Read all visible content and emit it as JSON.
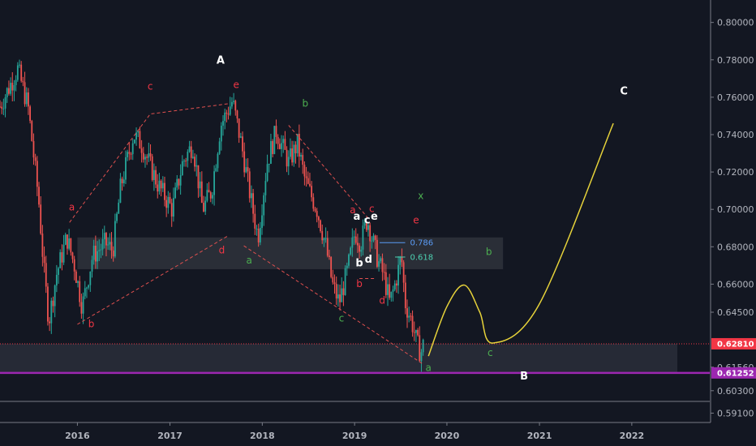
{
  "chart_data": {
    "type": "candlestick",
    "instrument_hint": "weekly price chart with Elliott wave annotations",
    "ylim": [
      0.586,
      0.812
    ],
    "y_scale": "linear",
    "grid": false,
    "y_ticks": [
      {
        "value": 0.8,
        "label": "0.80000"
      },
      {
        "value": 0.78,
        "label": "0.78000"
      },
      {
        "value": 0.76,
        "label": "0.76000"
      },
      {
        "value": 0.74,
        "label": "0.74000"
      },
      {
        "value": 0.72,
        "label": "0.72000"
      },
      {
        "value": 0.7,
        "label": "0.70000"
      },
      {
        "value": 0.68,
        "label": "0.68000"
      },
      {
        "value": 0.66,
        "label": "0.66000"
      },
      {
        "value": 0.645,
        "label": "0.64500"
      },
      {
        "value": 0.6156,
        "label": "0.61560"
      },
      {
        "value": 0.603,
        "label": "0.60300"
      },
      {
        "value": 0.591,
        "label": "0.59100"
      }
    ],
    "x_range": [
      "2015-03-01",
      "2022-06-30"
    ],
    "x_ticks": [
      {
        "date": "2016-01-01",
        "label": "2016"
      },
      {
        "date": "2017-01-01",
        "label": "2017"
      },
      {
        "date": "2018-01-01",
        "label": "2018"
      },
      {
        "date": "2019-01-01",
        "label": "2019"
      },
      {
        "date": "2020-01-01",
        "label": "2020"
      },
      {
        "date": "2021-01-01",
        "label": "2021"
      },
      {
        "date": "2022-01-01",
        "label": "2022"
      }
    ],
    "price_anchors": [
      [
        "2015-03-01",
        0.755
      ],
      [
        "2015-05-10",
        0.775
      ],
      [
        "2015-06-20",
        0.755
      ],
      [
        "2015-08-01",
        0.705
      ],
      [
        "2015-08-20",
        0.67
      ],
      [
        "2015-09-10",
        0.64
      ],
      [
        "2015-10-10",
        0.665
      ],
      [
        "2015-11-20",
        0.685
      ],
      [
        "2015-12-20",
        0.67
      ],
      [
        "2016-01-20",
        0.648
      ],
      [
        "2016-03-01",
        0.675
      ],
      [
        "2016-04-20",
        0.682
      ],
      [
        "2016-05-20",
        0.678
      ],
      [
        "2016-06-20",
        0.712
      ],
      [
        "2016-08-10",
        0.74
      ],
      [
        "2016-09-10",
        0.735
      ],
      [
        "2016-11-15",
        0.713
      ],
      [
        "2017-01-10",
        0.7
      ],
      [
        "2017-02-20",
        0.725
      ],
      [
        "2017-04-01",
        0.735
      ],
      [
        "2017-05-10",
        0.7
      ],
      [
        "2017-06-15",
        0.71
      ],
      [
        "2017-07-20",
        0.745
      ],
      [
        "2017-09-05",
        0.758
      ],
      [
        "2017-10-10",
        0.735
      ],
      [
        "2017-11-20",
        0.703
      ],
      [
        "2017-12-15",
        0.685
      ],
      [
        "2018-01-20",
        0.725
      ],
      [
        "2018-02-25",
        0.742
      ],
      [
        "2018-04-15",
        0.725
      ],
      [
        "2018-05-20",
        0.735
      ],
      [
        "2018-06-20",
        0.715
      ],
      [
        "2018-08-05",
        0.7
      ],
      [
        "2018-09-10",
        0.68
      ],
      [
        "2018-10-05",
        0.66
      ],
      [
        "2018-11-01",
        0.65
      ],
      [
        "2018-12-05",
        0.668
      ],
      [
        "2019-01-02",
        0.688
      ],
      [
        "2019-01-25",
        0.682
      ],
      [
        "2019-02-20",
        0.695
      ],
      [
        "2019-03-10",
        0.685
      ],
      [
        "2019-04-05",
        0.672
      ],
      [
        "2019-04-25",
        0.665
      ],
      [
        "2019-05-20",
        0.65
      ],
      [
        "2019-06-10",
        0.66
      ],
      [
        "2019-07-05",
        0.675
      ],
      [
        "2019-07-20",
        0.65
      ],
      [
        "2019-08-15",
        0.64
      ],
      [
        "2019-09-05",
        0.628
      ],
      [
        "2019-09-20",
        0.623
      ],
      [
        "2019-10-05",
        0.63
      ]
    ],
    "zones": [
      {
        "name": "resistance-zone",
        "from": "2016-01-01",
        "to": "2020-08-10",
        "y_low": 0.668,
        "y_high": 0.685,
        "color": "#2f323b"
      },
      {
        "name": "support-zone",
        "from": "2015-03-01",
        "to": "2022-06-30",
        "y_low": 0.6125,
        "y_high": 0.6281,
        "color": "#2a2e39"
      }
    ],
    "horizontal_lines": [
      {
        "name": "current-price-line",
        "value": 0.6281,
        "style": "dotted",
        "color": "#f23645"
      },
      {
        "name": "support-line",
        "value": 0.61252,
        "style": "solid",
        "color": "#9c27b0"
      }
    ],
    "price_badges": [
      {
        "name": "current-price-badge",
        "value": 0.6281,
        "text": "0.62810",
        "color": "#f23645"
      },
      {
        "name": "support-badge",
        "value": 0.61252,
        "text": "0.61252",
        "color": "#9c27b0"
      }
    ],
    "fib_levels": [
      {
        "ratio": "0.786",
        "value": 0.6822,
        "color": "#5b9cf6",
        "from": "2019-04-10",
        "to": "2019-07-20"
      },
      {
        "ratio": "0.618",
        "value": 0.6745,
        "color": "#4dd0b1",
        "from": "2019-06-10",
        "to": "2019-07-20"
      }
    ],
    "triangle_upper": [
      [
        "2015-12-01",
        0.693
      ],
      [
        "2016-10-15",
        0.751
      ],
      [
        "2017-08-20",
        0.7565
      ]
    ],
    "triangle_lower": [
      [
        "2016-01-01",
        0.6385
      ],
      [
        "2017-08-20",
        0.686
      ]
    ],
    "channel_upper": [
      [
        "2018-04-15",
        0.745
      ],
      [
        "2019-03-01",
        0.6945
      ]
    ],
    "channel_lower": [
      [
        "2017-10-20",
        0.6805
      ],
      [
        "2019-10-01",
        0.617
      ]
    ],
    "small_box": [
      [
        "2019-01-20",
        0.663
      ],
      [
        "2019-03-20",
        0.663
      ]
    ],
    "projection": [
      [
        "2019-10-20",
        0.6215
      ],
      [
        "2020-01-01",
        0.648
      ],
      [
        "2020-03-10",
        0.6595
      ],
      [
        "2020-05-10",
        0.645
      ],
      [
        "2020-07-01",
        0.6285
      ],
      [
        "2021-01-01",
        0.6495
      ],
      [
        "2021-10-20",
        0.746
      ]
    ],
    "wave_labels": [
      {
        "text": "A",
        "date": "2017-07-20",
        "value": 0.778,
        "color": "#ffffff",
        "bold": true
      },
      {
        "text": "a",
        "date": "2015-12-10",
        "value": 0.6995,
        "color": "#f23645"
      },
      {
        "text": "b",
        "date": "2016-02-25",
        "value": 0.637,
        "color": "#f23645"
      },
      {
        "text": "c",
        "date": "2016-10-15",
        "value": 0.764,
        "color": "#f23645"
      },
      {
        "text": "d",
        "date": "2017-07-25",
        "value": 0.6765,
        "color": "#f23645"
      },
      {
        "text": "e",
        "date": "2017-09-20",
        "value": 0.765,
        "color": "#f23645"
      },
      {
        "text": "b",
        "date": "2018-06-20",
        "value": 0.755,
        "color": "#4caf50"
      },
      {
        "text": "a",
        "date": "2017-11-10",
        "value": 0.671,
        "color": "#4caf50"
      },
      {
        "text": "c",
        "date": "2018-11-10",
        "value": 0.64,
        "color": "#4caf50"
      },
      {
        "text": "x",
        "date": "2019-09-20",
        "value": 0.7055,
        "color": "#4caf50"
      },
      {
        "text": "a",
        "date": "2018-12-25",
        "value": 0.698,
        "color": "#f23645"
      },
      {
        "text": "b",
        "date": "2019-01-20",
        "value": 0.6585,
        "color": "#f23645"
      },
      {
        "text": "c",
        "date": "2019-03-10",
        "value": 0.6985,
        "color": "#f23645"
      },
      {
        "text": "d",
        "date": "2019-04-20",
        "value": 0.6495,
        "color": "#f23645"
      },
      {
        "text": "e",
        "date": "2019-09-01",
        "value": 0.6925,
        "color": "#f23645"
      },
      {
        "text": "a",
        "date": "2019-01-10",
        "value": 0.6945,
        "color": "#ffffff",
        "bold": true
      },
      {
        "text": "c",
        "date": "2019-02-20",
        "value": 0.6925,
        "color": "#ffffff",
        "bold": true
      },
      {
        "text": "e",
        "date": "2019-03-20",
        "value": 0.6945,
        "color": "#ffffff",
        "bold": true
      },
      {
        "text": "b",
        "date": "2019-01-20",
        "value": 0.6695,
        "color": "#ffffff",
        "bold": true
      },
      {
        "text": "d",
        "date": "2019-02-25",
        "value": 0.6715,
        "color": "#ffffff",
        "bold": true
      },
      {
        "text": "a",
        "date": "2019-10-20",
        "value": 0.6135,
        "color": "#4caf50"
      },
      {
        "text": "b",
        "date": "2020-06-15",
        "value": 0.6755,
        "color": "#4caf50"
      },
      {
        "text": "c",
        "date": "2020-06-20",
        "value": 0.6215,
        "color": "#4caf50"
      },
      {
        "text": "B",
        "date": "2020-11-01",
        "value": 0.609,
        "color": "#ffffff",
        "bold": true
      },
      {
        "text": "C",
        "date": "2021-12-01",
        "value": 0.7615,
        "color": "#ffffff",
        "bold": true
      }
    ],
    "colors": {
      "background": "#131722",
      "bull": "#26a69a",
      "bear": "#ef5350",
      "axis_text": "#b2b5be",
      "axis_line": "#787b86",
      "dashed_lines": "#e0504f",
      "projection": "#e6d23a"
    }
  }
}
